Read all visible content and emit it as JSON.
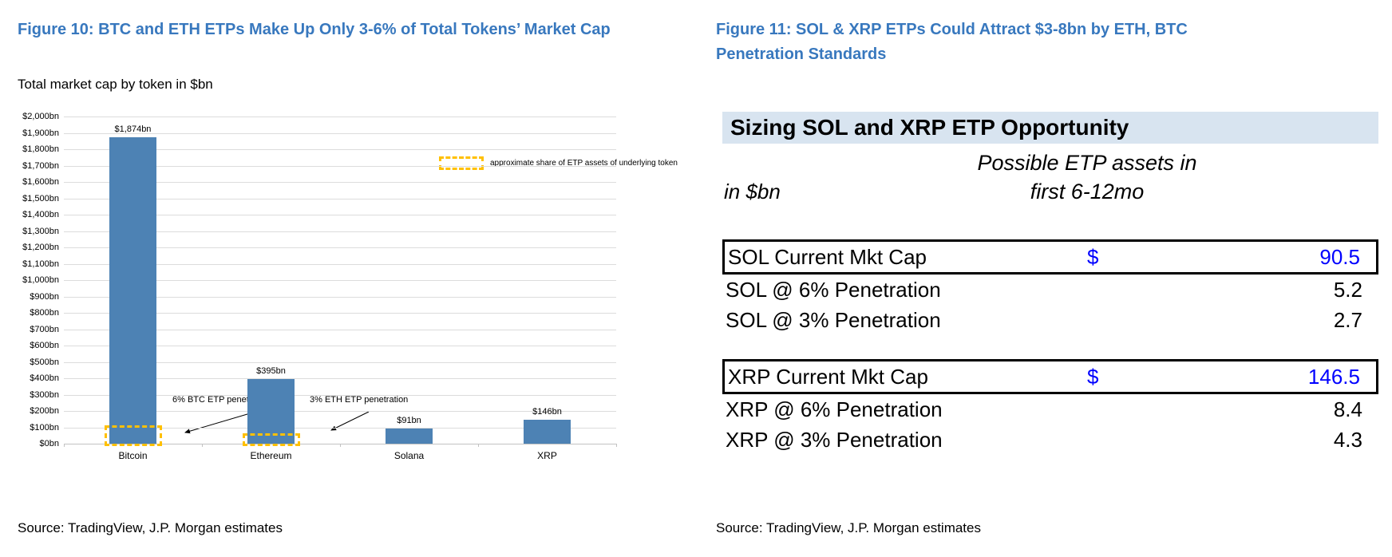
{
  "figure10": {
    "title": "Figure 10: BTC and ETH ETPs Make Up Only 3-6% of Total Tokens’ Market Cap",
    "subtitle": "Total market cap by token in $bn",
    "source": "Source: TradingView, J.P. Morgan estimates"
  },
  "figure11": {
    "title": "Figure 11: SOL & XRP ETPs Could Attract $3-8bn by ETH, BTC Penetration Standards",
    "source": "Source: TradingView, J.P. Morgan estimates"
  },
  "chart_data": [
    {
      "type": "bar",
      "title": "Total market cap by token in $bn",
      "categories": [
        "Bitcoin",
        "Ethereum",
        "Solana",
        "XRP"
      ],
      "values": [
        1874,
        395,
        91,
        146
      ],
      "bar_labels": [
        "$1,874bn",
        "$395bn",
        "$91bn",
        "$146bn"
      ],
      "xlabel": "",
      "ylabel": "",
      "ylim": [
        0,
        2000
      ],
      "ytick_step": 100,
      "ytick_prefix": "$",
      "ytick_suffix": "bn",
      "grid": true,
      "legend_position": "inside-right",
      "legend_label": "approximate share of ETP assets of underlying token",
      "bar_color": "#4D82B4",
      "highlight_color": "#FFC000",
      "highlight_boxes": [
        {
          "category": "Bitcoin",
          "value": 112,
          "label": "6% BTC ETP penetration"
        },
        {
          "category": "Ethereum",
          "value": 12,
          "label": "3% ETH ETP penetration"
        }
      ]
    },
    {
      "type": "table",
      "title": "Sizing SOL and XRP ETP Opportunity",
      "units_label": "in $bn",
      "value_col_header": [
        "Possible ETP assets in",
        "first 6-12mo"
      ],
      "rows": [
        {
          "label": "SOL Current Mkt Cap",
          "currency": "$",
          "value": "90.5",
          "boxed": true,
          "blue": true
        },
        {
          "label": "SOL @ 6% Penetration",
          "currency": "",
          "value": "5.2",
          "boxed": false,
          "blue": false
        },
        {
          "label": "SOL @ 3% Penetration",
          "currency": "",
          "value": "2.7",
          "boxed": false,
          "blue": false
        },
        {
          "spacer": true
        },
        {
          "label": "XRP Current Mkt Cap",
          "currency": "$",
          "value": "146.5",
          "boxed": true,
          "blue": true
        },
        {
          "label": "XRP @ 6% Penetration",
          "currency": "",
          "value": "8.4",
          "boxed": false,
          "blue": false
        },
        {
          "label": "XRP @ 3% Penetration",
          "currency": "",
          "value": "4.3",
          "boxed": false,
          "blue": false
        }
      ]
    }
  ],
  "colors": {
    "figure_title_blue": "#3878BE",
    "bar_blue": "#4D82B4",
    "dashed_orange": "#FFC000",
    "table_value_blue": "#0000FF",
    "table_band_bg": "#D8E4F0"
  }
}
